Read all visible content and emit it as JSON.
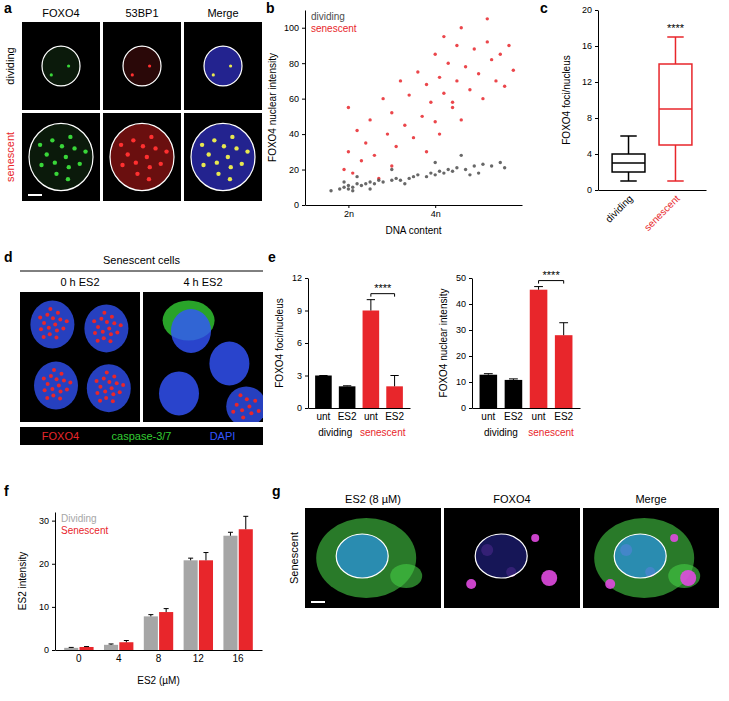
{
  "chart_data": [
    {
      "type": "image",
      "panel": "a",
      "column_labels": [
        "FOXO4",
        "53BP1",
        "Merge"
      ],
      "row_labels": [
        "dividing",
        "senescent"
      ]
    },
    {
      "type": "scatter",
      "panel": "b",
      "xlabel": "DNA content",
      "ylabel": "FOXO4 nuclear intensity",
      "xlim": [
        1,
        6
      ],
      "xticks": [
        {
          "value": 2,
          "label": "2n"
        },
        {
          "value": 4,
          "label": "4n"
        }
      ],
      "ylim": [
        0,
        110
      ],
      "yticks": [
        0,
        20,
        40,
        60,
        80,
        100
      ],
      "legend": "upper left",
      "series": [
        {
          "name": "dividing",
          "color": "#4d4d4d",
          "x": [
            1.6,
            1.8,
            1.9,
            2.0,
            2.0,
            2.1,
            2.2,
            2.1,
            2.3,
            2.4,
            2.5,
            2.6,
            2.7,
            2.8,
            3.0,
            3.1,
            3.2,
            3.4,
            3.5,
            3.6,
            3.8,
            3.9,
            4.0,
            4.1,
            4.2,
            4.3,
            4.4,
            4.5,
            4.7,
            4.9,
            5.1,
            5.3,
            5.5,
            1.9,
            2.2,
            3.0,
            4.0,
            4.6,
            5.0,
            2.5,
            3.3,
            4.8,
            5.6
          ],
          "values": [
            8,
            9,
            10,
            9,
            11,
            10,
            12,
            8,
            11,
            12,
            13,
            12,
            14,
            13,
            14,
            15,
            14,
            15,
            16,
            17,
            16,
            18,
            17,
            19,
            18,
            20,
            19,
            21,
            20,
            22,
            23,
            22,
            24,
            13,
            16,
            20,
            24,
            28,
            18,
            9,
            12,
            17,
            21
          ]
        },
        {
          "name": "senescent",
          "color": "#e8262b",
          "x": [
            1.9,
            2.0,
            2.1,
            2.2,
            2.3,
            2.0,
            2.4,
            2.5,
            2.6,
            2.8,
            2.9,
            3.0,
            3.1,
            3.2,
            3.3,
            3.4,
            3.5,
            3.6,
            3.7,
            3.8,
            3.9,
            4.0,
            4.0,
            4.1,
            4.2,
            4.2,
            4.3,
            4.4,
            4.5,
            4.5,
            4.6,
            4.7,
            4.8,
            4.9,
            5.0,
            5.1,
            5.2,
            5.3,
            5.4,
            5.5,
            5.6,
            5.7,
            5.8,
            3.0,
            2.7,
            4.1,
            4.6,
            5.2,
            3.8,
            4.4
          ],
          "values": [
            20,
            30,
            18,
            42,
            25,
            55,
            35,
            48,
            28,
            60,
            40,
            52,
            33,
            70,
            45,
            62,
            38,
            75,
            50,
            68,
            58,
            85,
            47,
            72,
            95,
            63,
            80,
            55,
            90,
            70,
            100,
            78,
            65,
            88,
            74,
            60,
            92,
            82,
            70,
            85,
            67,
            90,
            76,
            22,
            15,
            40,
            48,
            105,
            30,
            58
          ]
        }
      ]
    },
    {
      "type": "box",
      "panel": "c",
      "ylabel": "FOXO4 foci/nucleus",
      "categories": [
        "dividing",
        "senescent"
      ],
      "colors": [
        "#000000",
        "#e8262b"
      ],
      "boxes": [
        {
          "min": 1,
          "q1": 2,
          "median": 3,
          "q3": 4,
          "max": 6
        },
        {
          "min": 1,
          "q1": 5,
          "median": 9,
          "q3": 14,
          "max": 17
        }
      ],
      "ylim": [
        0,
        20
      ],
      "yticks": [
        0,
        4,
        8,
        12,
        16,
        20
      ],
      "annotations": [
        {
          "text": "****",
          "category": 1
        }
      ]
    },
    {
      "type": "image",
      "panel": "d",
      "title": "Senescent cells",
      "column_labels": [
        "0 h ES2",
        "4 h ES2"
      ],
      "channels": [
        {
          "name": "FOXO4",
          "color": "#e8262b"
        },
        {
          "name": "caspase-3/7",
          "color": "#33cc33"
        },
        {
          "name": "DAPI",
          "color": "#3355ff"
        }
      ]
    },
    {
      "type": "bar",
      "panel": "e",
      "ylabel": "FOXO4 foci/nucleus",
      "categories": [
        "unt",
        "ES2",
        "unt",
        "ES2"
      ],
      "group_labels": [
        "dividing",
        "senescent"
      ],
      "values": [
        3,
        2,
        9,
        2
      ],
      "errors": [
        0,
        0.05,
        1,
        1
      ],
      "colors": [
        "#000000",
        "#000000",
        "#e8262b",
        "#e8262b"
      ],
      "ylim": [
        0,
        12
      ],
      "yticks": [
        0,
        3,
        6,
        9,
        12
      ],
      "annotations": [
        {
          "text": "****",
          "from": 2,
          "to": 3
        }
      ]
    },
    {
      "type": "bar",
      "ylabel": "FOXO4 nuclear intensity",
      "categories": [
        "unt",
        "ES2",
        "unt",
        "ES2"
      ],
      "group_labels": [
        "dividing",
        "senescent"
      ],
      "values": [
        12.8,
        10.8,
        45.5,
        28
      ],
      "errors": [
        0.4,
        0.4,
        1.2,
        4.8
      ],
      "colors": [
        "#000000",
        "#000000",
        "#e8262b",
        "#e8262b"
      ],
      "ylim": [
        0,
        50
      ],
      "yticks": [
        0,
        10,
        20,
        30,
        40,
        50
      ],
      "annotations": [
        {
          "text": "****",
          "from": 2,
          "to": 3
        }
      ]
    },
    {
      "type": "bar",
      "panel": "f",
      "ylabel": "ES2 intensity",
      "xlabel": "ES2 (µM)",
      "categories": [
        "0",
        "4",
        "8",
        "12",
        "16"
      ],
      "legend": "upper left",
      "series": [
        {
          "name": "Dividing",
          "color": "#a6a6a6",
          "values": [
            0.5,
            1.2,
            7.8,
            20.8,
            26.5
          ],
          "errors": [
            0.1,
            0.2,
            0.4,
            0.5,
            0.8
          ]
        },
        {
          "name": "Senescent",
          "color": "#e8262b",
          "values": [
            0.7,
            1.8,
            8.8,
            20.8,
            28
          ],
          "errors": [
            0.1,
            0.4,
            0.8,
            1.8,
            3
          ]
        }
      ],
      "ylim": [
        0,
        32
      ],
      "yticks": [
        0,
        10,
        20,
        30
      ]
    },
    {
      "type": "image",
      "panel": "g",
      "column_labels": [
        "ES2 (8 µM)",
        "FOXO4",
        "Merge"
      ],
      "row_labels": [
        "Senescent"
      ]
    }
  ]
}
